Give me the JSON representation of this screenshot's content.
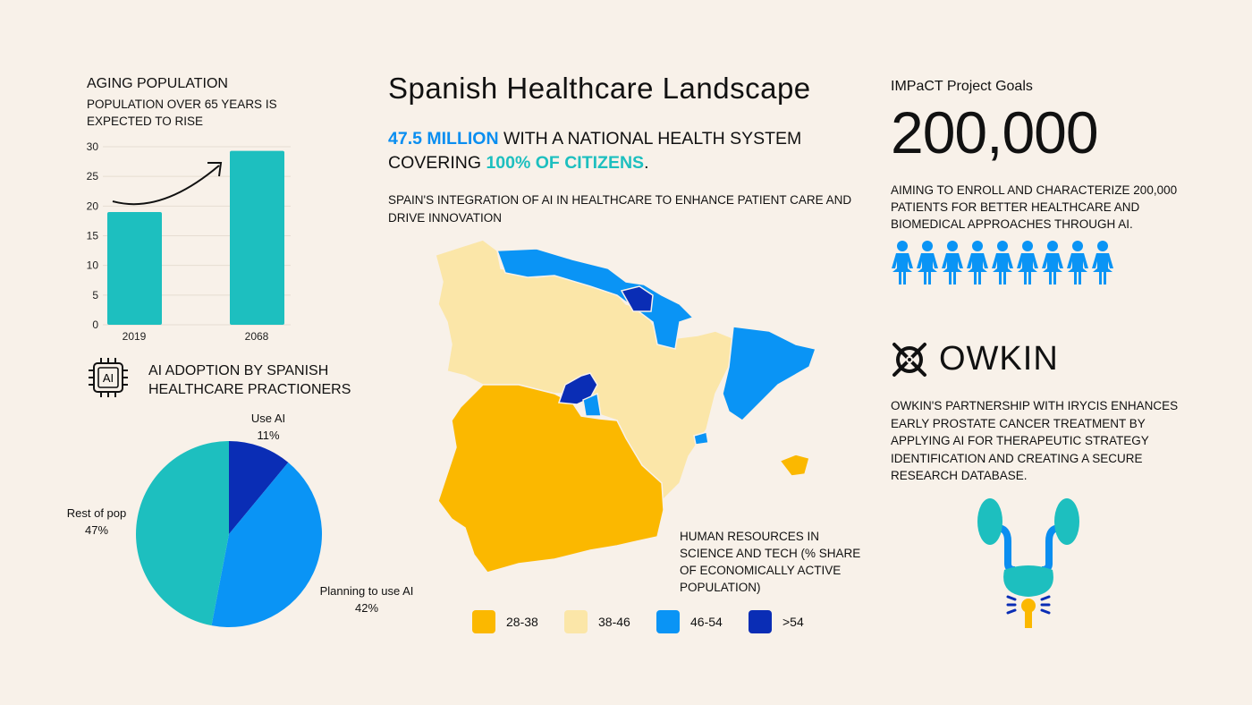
{
  "colors": {
    "background": "#f8f1e9",
    "teal": "#1dbfbf",
    "blue": "#0a94f5",
    "dark_blue": "#0a2db5",
    "yellow": "#fbb800",
    "light_yellow": "#fbe6a8"
  },
  "aging": {
    "title": "AGING POPULATION",
    "subtitle": "POPULATION OVER 65 YEARS IS EXPECTED TO RISE"
  },
  "ai_adoption": {
    "icon": "ai-chip-icon",
    "icon_text": "AI",
    "title": "AI ADOPTION BY SPANISH HEALTHCARE PRACTIONERS"
  },
  "chart_data": [
    {
      "type": "bar",
      "categories": [
        "2019",
        "2068"
      ],
      "values": [
        19,
        29.3
      ],
      "ylim": [
        0,
        30
      ],
      "yticks": [
        "0",
        "5",
        "10",
        "15",
        "20",
        "25",
        "30"
      ],
      "grid": true,
      "color": "#1dbfbf"
    },
    {
      "type": "pie",
      "slices": [
        {
          "label": "Use AI",
          "value": 11,
          "value_label": "11%",
          "color": "#0a2db5"
        },
        {
          "label": "Planning to use AI",
          "value": 42,
          "value_label": "42%",
          "color": "#0a94f5"
        },
        {
          "label": "Rest of pop",
          "value": 47,
          "value_label": "47%",
          "color": "#1dbfbf"
        }
      ]
    }
  ],
  "main": {
    "title": "Spanish Healthcare Landscape",
    "headline": {
      "a": "47.5 MILLION",
      "b": " WITH A NATIONAL HEALTH SYSTEM COVERING ",
      "c": "100% OF CITIZENS",
      "d": "."
    },
    "integration": "SPAIN'S INTEGRATION OF AI IN HEALTHCARE TO ENHANCE PATIENT CARE AND DRIVE INNOVATION",
    "map_title": "HUMAN RESOURCES IN SCIENCE AND TECH (% SHARE OF ECONOMICALLY ACTIVE POPULATION)",
    "legend": [
      {
        "label": "28-38",
        "color": "#fbb800"
      },
      {
        "label": "38-46",
        "color": "#fbe6a8"
      },
      {
        "label": "46-54",
        "color": "#0a94f5"
      },
      {
        "label": ">54",
        "color": "#0a2db5"
      }
    ]
  },
  "goals": {
    "title": "IMPaCT Project Goals",
    "number": "200,000",
    "text": "AIMING TO ENROLL AND CHARACTERIZE 200,000 PATIENTS FOR BETTER HEALTHCARE AND BIOMEDICAL APPROACHES THROUGH AI.",
    "people_icon": "person-icon",
    "people_count": 9
  },
  "owkin": {
    "logo": "OWKIN",
    "text": "OWKIN'S PARTNERSHIP WITH IRYCIS ENHANCES EARLY PROSTATE CANCER TREATMENT BY APPLYING AI FOR THERAPEUTIC STRATEGY IDENTIFICATION AND CREATING A SECURE RESEARCH DATABASE.",
    "illustration": "urinary-system-icon"
  }
}
